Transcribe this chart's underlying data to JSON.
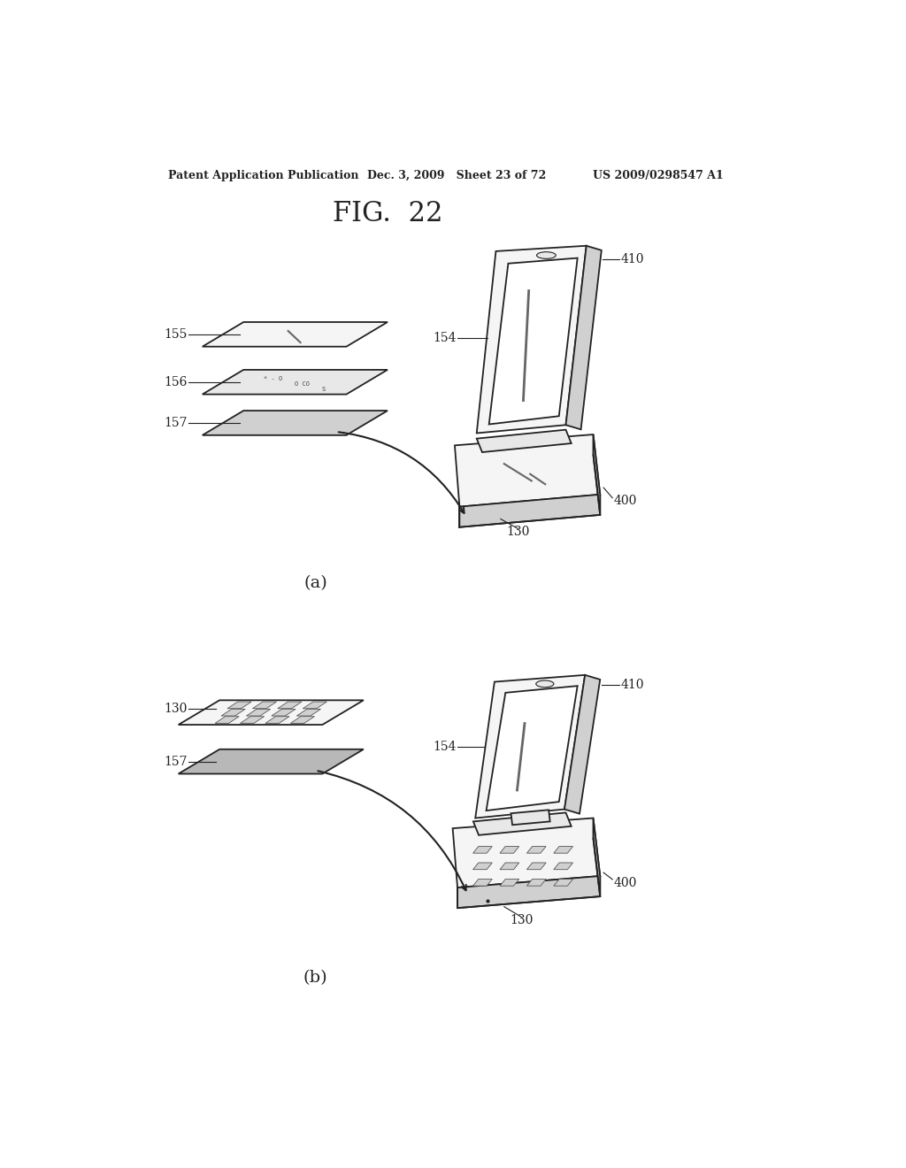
{
  "bg_color": "#ffffff",
  "fig_title": "FIG.  22",
  "header_left": "Patent Application Publication",
  "header_mid": "Dec. 3, 2009   Sheet 23 of 72",
  "header_right": "US 2009/0298547 A1",
  "label_a": "(a)",
  "label_b": "(b)",
  "header_fontsize": 9,
  "title_fontsize": 22,
  "label_fontsize": 14,
  "ref_fontsize": 10
}
